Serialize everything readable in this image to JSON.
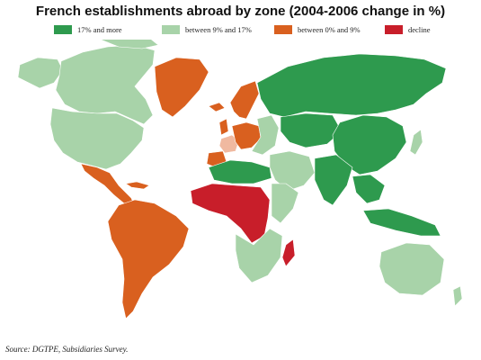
{
  "title": "French establishments abroad by zone (2004-2006 change in %)",
  "legend": [
    {
      "label": "17% and more",
      "color": "#2e9a4e"
    },
    {
      "label": "between 9% and 17%",
      "color": "#a8d3a9"
    },
    {
      "label": "between 0% and 9%",
      "color": "#d9601f"
    },
    {
      "label": "decline",
      "color": "#c81e2a"
    }
  ],
  "colors": {
    "strong_growth": "#2e9a4e",
    "moderate_growth": "#a8d3a9",
    "low_growth": "#d9601f",
    "decline": "#c81e2a",
    "france": "#f0b9a0"
  },
  "source": "Source: DGTPE, Subsidiaries Survey."
}
